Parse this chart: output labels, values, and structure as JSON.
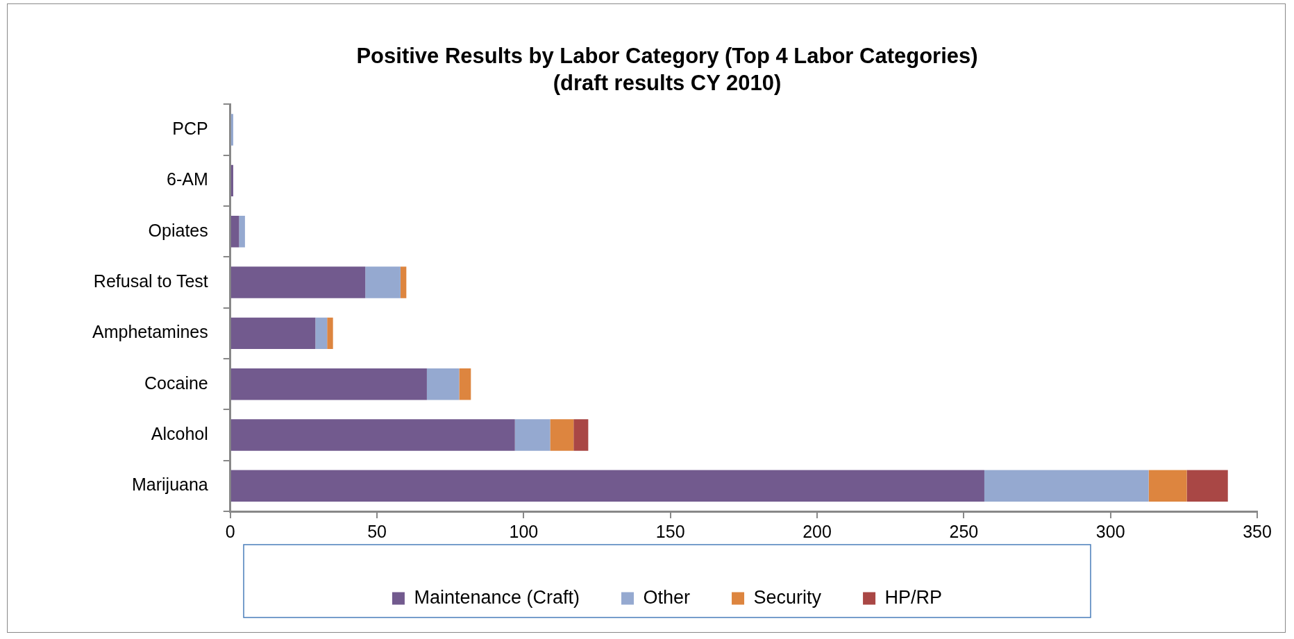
{
  "chart_data": {
    "type": "bar",
    "orientation": "horizontal",
    "stacked": true,
    "title": "Positive Results by Labor Category (Top 4 Labor Categories)",
    "subtitle": "(draft results CY 2010)",
    "categories": [
      "PCP",
      "6-AM",
      "Opiates",
      "Refusal to Test",
      "Amphetamines",
      "Cocaine",
      "Alcohol",
      "Marijuana"
    ],
    "series": [
      {
        "name": "Maintenance (Craft)",
        "color": "#725a8e",
        "values": [
          0,
          1,
          3,
          46,
          29,
          67,
          97,
          257
        ]
      },
      {
        "name": "Other",
        "color": "#95a9d0",
        "values": [
          1,
          0,
          2,
          12,
          4,
          11,
          12,
          56
        ]
      },
      {
        "name": "Security",
        "color": "#dd853f",
        "values": [
          0,
          0,
          0,
          2,
          2,
          4,
          8,
          13
        ]
      },
      {
        "name": "HP/RP",
        "color": "#a94745",
        "values": [
          0,
          0,
          0,
          0,
          0,
          0,
          5,
          14
        ]
      }
    ],
    "xlim": [
      0,
      350
    ],
    "xticks": [
      0,
      50,
      100,
      150,
      200,
      250,
      300,
      350
    ],
    "grid": false,
    "legend": "bottom"
  }
}
